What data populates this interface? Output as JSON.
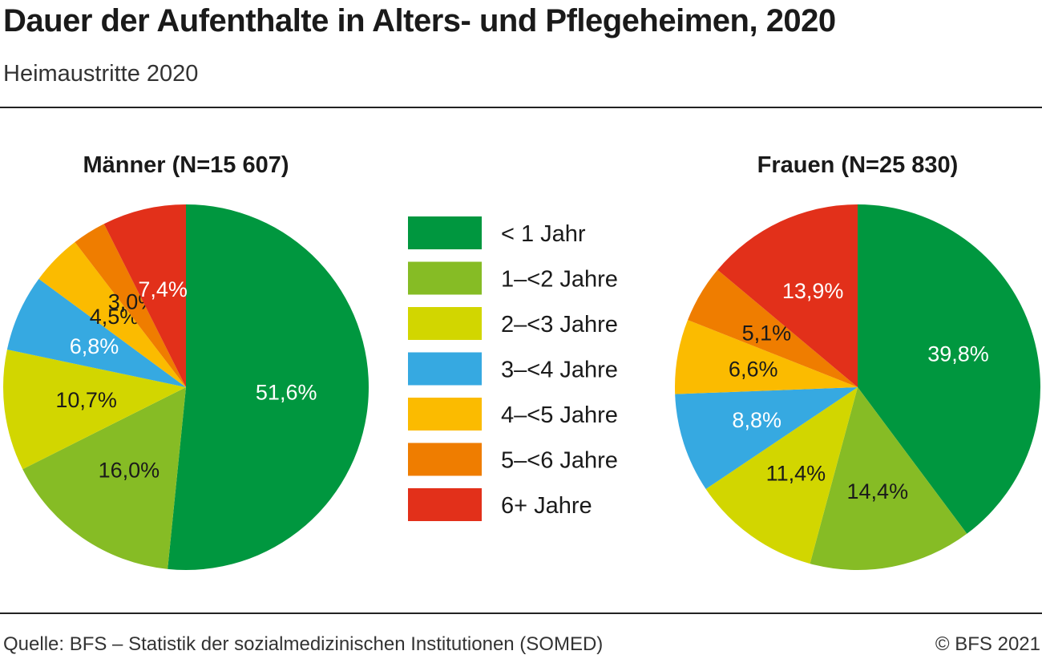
{
  "title": "Dauer der Aufenthalte in Alters- und Pflegeheimen, 2020",
  "subtitle": "Heimaustritte 2020",
  "footer": {
    "source": "Quelle: BFS – Statistik der sozialmedizinischen Institutionen (SOMED)",
    "copyright": "© BFS 2021"
  },
  "colors": {
    "lt1": "#00973f",
    "y1_2": "#86bc25",
    "y2_3": "#d2d600",
    "y3_4": "#36a9e1",
    "y4_5": "#fbbb00",
    "y5_6": "#ef7d00",
    "y6p": "#e2301a"
  },
  "chart_data": {
    "type": "pie",
    "categories": [
      "< 1 Jahr",
      "1–<2 Jahre",
      "2–<3 Jahre",
      "3–<4 Jahre",
      "4–<5 Jahre",
      "5–<6 Jahre",
      "6+ Jahre"
    ],
    "legend": [
      {
        "label": "< 1 Jahr",
        "color": "#00973f"
      },
      {
        "label": "1–<2 Jahre",
        "color": "#86bc25"
      },
      {
        "label": "2–<3 Jahre",
        "color": "#d2d600"
      },
      {
        "label": "3–<4 Jahre",
        "color": "#36a9e1"
      },
      {
        "label": "4–<5 Jahre",
        "color": "#fbbb00"
      },
      {
        "label": "5–<6 Jahre",
        "color": "#ef7d00"
      },
      {
        "label": "6+ Jahre",
        "color": "#e2301a"
      }
    ],
    "legend_placement": "center",
    "pies": [
      {
        "title": "Männer (N=15 607)",
        "values": [
          51.6,
          16.0,
          10.7,
          6.8,
          4.5,
          3.0,
          7.4
        ],
        "labels": [
          "51,6%",
          "16,0%",
          "10,7%",
          "6,8%",
          "4,5%",
          "3,0%",
          "7,4%"
        ],
        "label_colors": [
          "#ffffff",
          "#1a1a1a",
          "#1a1a1a",
          "#ffffff",
          "#1a1a1a",
          "#1a1a1a",
          "#ffffff"
        ]
      },
      {
        "title": "Frauen (N=25 830)",
        "values": [
          39.8,
          14.4,
          11.4,
          8.8,
          6.6,
          5.1,
          13.9
        ],
        "labels": [
          "39,8%",
          "14,4%",
          "11,4%",
          "8,8%",
          "6,6%",
          "5,1%",
          "13,9%"
        ],
        "label_colors": [
          "#ffffff",
          "#1a1a1a",
          "#1a1a1a",
          "#ffffff",
          "#1a1a1a",
          "#1a1a1a",
          "#ffffff"
        ]
      }
    ]
  }
}
